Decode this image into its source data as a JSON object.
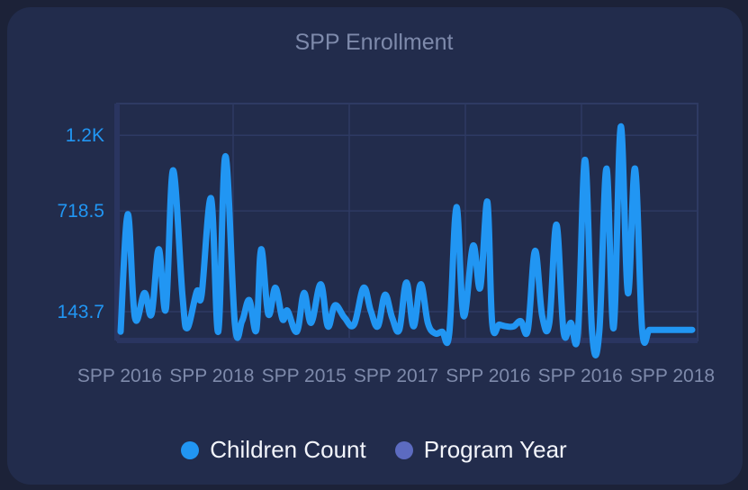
{
  "chart_data": {
    "type": "line",
    "title": "SPP Enrollment",
    "xlabel": "",
    "ylabel": "",
    "ylim": [
      0,
      1300
    ],
    "y_ticks": [
      {
        "value": 143.7,
        "label": "143.7"
      },
      {
        "value": 718.5,
        "label": "718.5"
      },
      {
        "value": 1150,
        "label": "1.2K"
      }
    ],
    "x_ticks": [
      "SPP 2016",
      "SPP 2018",
      "SPP 2015",
      "SPP 2017",
      "SPP 2016",
      "SPP 2016",
      "SPP 2018"
    ],
    "grid": true,
    "legend_position": "bottom",
    "x_count": 121,
    "series": [
      {
        "name": "Children Count",
        "color": "#2196f3",
        "x": [
          0,
          1.5,
          3,
          5,
          6.5,
          8,
          9.5,
          11,
          13,
          14,
          16,
          17,
          19,
          20.5,
          22,
          24,
          25.5,
          27,
          28.5,
          29.5,
          31,
          32.5,
          34,
          35,
          37,
          38.5,
          40,
          42,
          43.5,
          45,
          47,
          49,
          51,
          52.5,
          54,
          55.5,
          57,
          58.5,
          60,
          61.5,
          63,
          64.5,
          66,
          67.5,
          69,
          70.5,
          72,
          74,
          75.5,
          77,
          78,
          79.5,
          81,
          82.5,
          84,
          85.5,
          87,
          88.5,
          90,
          91.5,
          93,
          94.5,
          96,
          97.5,
          99,
          100.5,
          102,
          103.5,
          105,
          106.5,
          108,
          109.5,
          111,
          112.5,
          114,
          115.5,
          117,
          118.5,
          120
        ],
        "values": [
          30,
          700,
          110,
          250,
          130,
          500,
          160,
          950,
          230,
          50,
          260,
          240,
          790,
          30,
          1030,
          70,
          90,
          210,
          40,
          500,
          130,
          280,
          100,
          150,
          30,
          250,
          80,
          300,
          60,
          180,
          110,
          70,
          280,
          150,
          60,
          240,
          110,
          40,
          310,
          60,
          300,
          80,
          20,
          30,
          20,
          740,
          120,
          520,
          280,
          770,
          80,
          70,
          60,
          60,
          90,
          40,
          490,
          120,
          80,
          640,
          30,
          80,
          20,
          1010,
          20,
          30,
          960,
          50,
          1200,
          250,
          960,
          40,
          40,
          40,
          40,
          40,
          40,
          40,
          40
        ],
        "show_markers": false
      },
      {
        "name": "Program Year",
        "color": "#5c6bc0",
        "values": []
      }
    ]
  },
  "colors": {
    "card_background": "#222c4c",
    "page_background": "#1c2238",
    "grid": "#2e3a63",
    "axis_tick_y": "#2196f3",
    "axis_tick_x": "#7e8aab",
    "title": "#7e8aab",
    "legend_text": "#f3f5fb"
  }
}
